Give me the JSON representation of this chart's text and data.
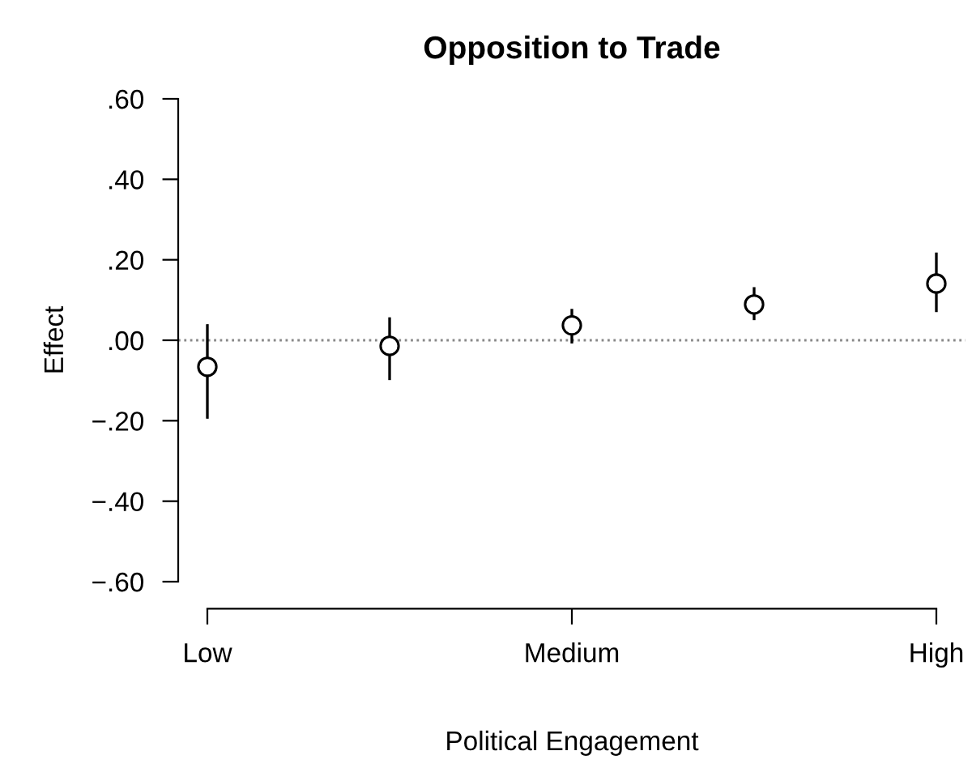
{
  "chart_data": {
    "type": "scatter",
    "title": "Opposition to Trade",
    "xlabel": "Political Engagement",
    "ylabel": "Effect",
    "categories": [
      "Low",
      null,
      "Medium",
      null,
      "High"
    ],
    "series": [
      {
        "color": "#000000",
        "values": [
          -0.066,
          -0.014,
          0.037,
          0.089,
          0.141
        ],
        "errors": [
          [
            -0.195,
            0.04
          ],
          [
            -0.099,
            0.057
          ],
          [
            -0.008,
            0.078
          ],
          [
            0.05,
            0.132
          ],
          [
            0.07,
            0.218
          ]
        ]
      }
    ],
    "marker": "circle",
    "ylim": [
      -0.6,
      0.6
    ],
    "yticks": [
      {
        "value": -0.6,
        "label": "−.60"
      },
      {
        "value": -0.4,
        "label": "−.40"
      },
      {
        "value": -0.2,
        "label": "−.20"
      },
      {
        "value": 0,
        "label": ".00"
      },
      {
        "value": 0.2,
        "label": ".20"
      },
      {
        "value": 0.4,
        "label": ".40"
      },
      {
        "value": 0.6,
        "label": ".60"
      }
    ],
    "ref_lines": [
      {
        "axis": "y",
        "value": 0,
        "color": "#888888",
        "line_style": "dotted"
      }
    ],
    "grid": false,
    "legend": false
  }
}
